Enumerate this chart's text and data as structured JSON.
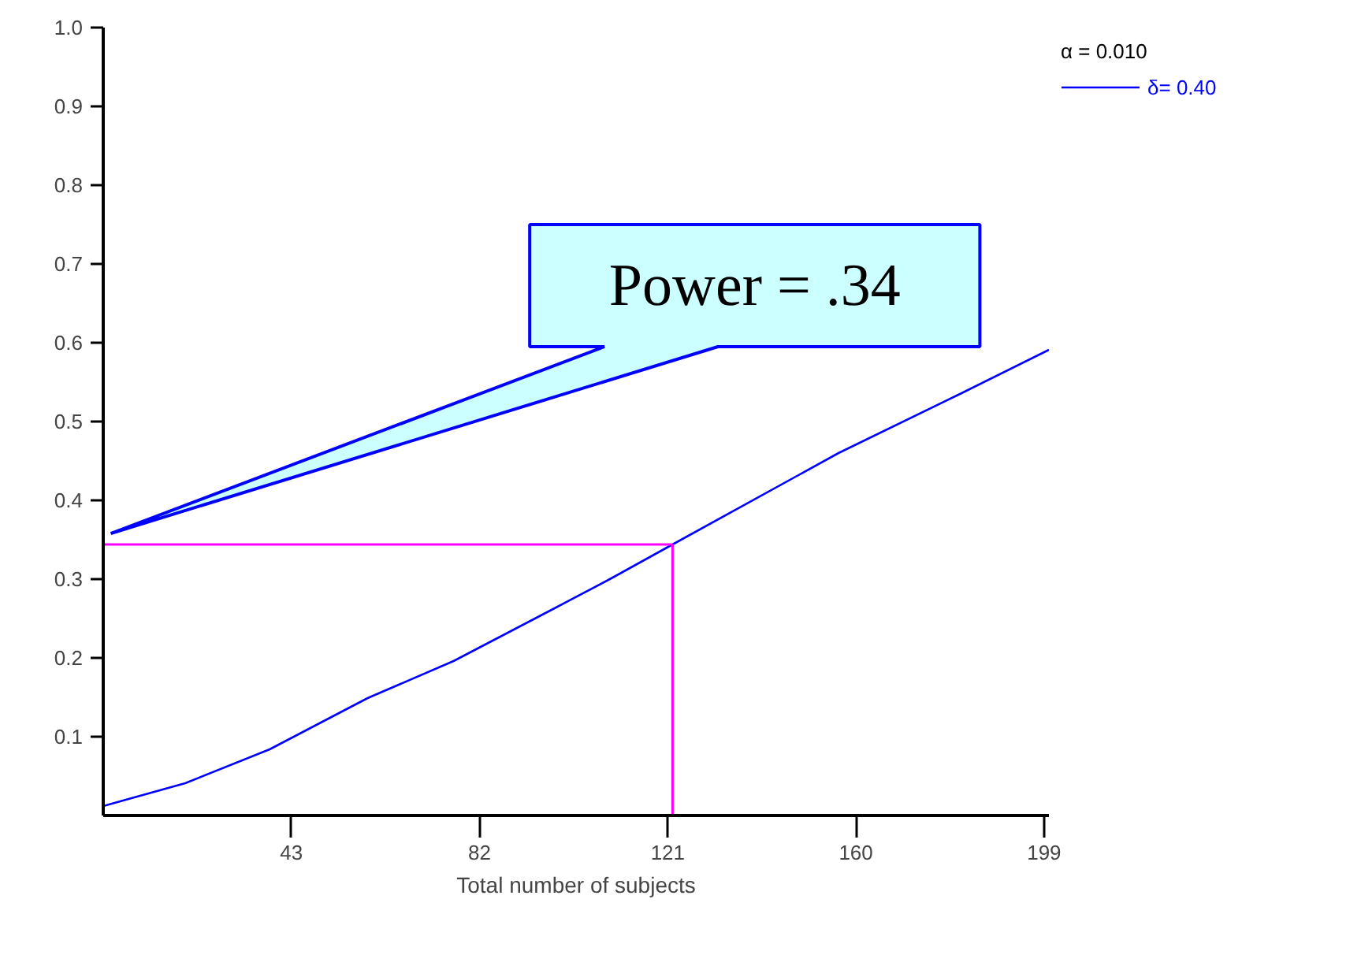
{
  "chart_data": {
    "type": "line",
    "xlabel": "Total number of subjects",
    "legend_title": "α = 0.010",
    "legend": "top right",
    "xlim": [
      4,
      200
    ],
    "ylim": [
      0,
      1
    ],
    "xticks": [
      43,
      82,
      121,
      160,
      199
    ],
    "yticks": [
      0.1,
      0.2,
      0.3,
      0.4,
      0.5,
      0.6,
      {
        "value": 0.7,
        "label": "0.7"
      },
      0.8,
      0.9,
      {
        "value": 1.0,
        "label": "1.0"
      }
    ],
    "x": [
      4,
      21,
      38.5,
      58.8,
      76.6,
      96.6,
      109,
      122,
      156.4,
      181.9,
      200
    ],
    "series": [
      {
        "name": "δ= 0.40",
        "color": "#0000ff",
        "values": [
          0.012,
          0.041,
          0.084,
          0.149,
          0.196,
          0.26,
          0.3,
          0.344,
          0.46,
          0.536,
          0.591
        ]
      }
    ],
    "ref_lines": [
      {
        "axis": "y",
        "value": 0.344,
        "color": "#ff00ff"
      },
      {
        "axis": "x",
        "value": 122,
        "color": "#ff00ff"
      }
    ],
    "annotations": [
      "Power = .34"
    ],
    "grid": false,
    "marker": "none",
    "line_style": "solid"
  }
}
